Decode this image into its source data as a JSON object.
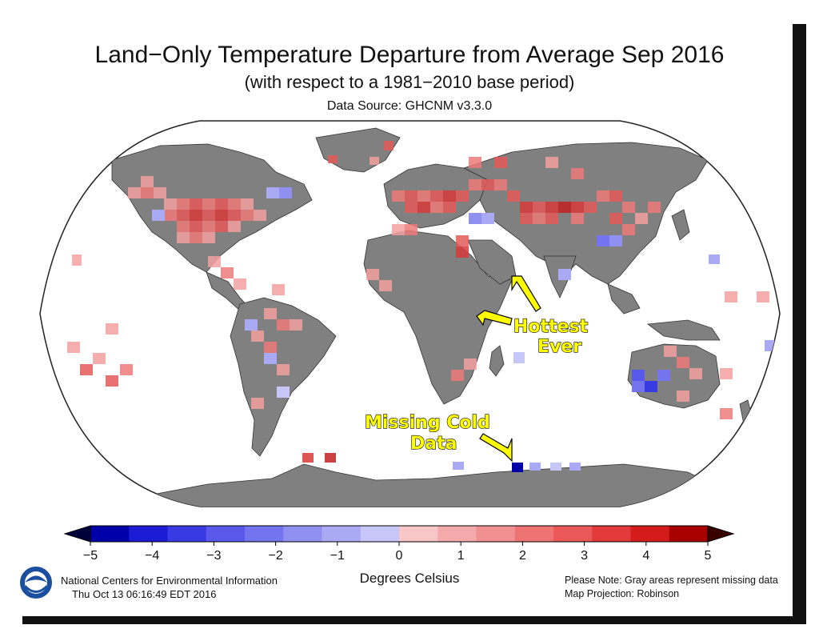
{
  "header": {
    "title": "Land−Only Temperature Departure from Average Sep 2016",
    "subtitle": "(with respect to a 1981−2010 base period)",
    "source": "Data Source: GHCNM v3.3.0"
  },
  "callouts": {
    "hottest_line1": "Hottest",
    "hottest_line2": "Ever",
    "missing_line1": "Missing Cold",
    "missing_line2": "Data"
  },
  "legend": {
    "ticks": [
      "−5",
      "−4",
      "−3",
      "−2",
      "−1",
      "0",
      "1",
      "2",
      "3",
      "4",
      "5"
    ],
    "unit_label": "Degrees Celsius",
    "colors": [
      "#0000a8",
      "#1c1cd4",
      "#3a3ae2",
      "#5858ea",
      "#7474ee",
      "#9090f0",
      "#aaaaf4",
      "#c6c6f8",
      "#f8c6c6",
      "#f4aaaa",
      "#f09090",
      "#ee7474",
      "#ea5858",
      "#e23a3a",
      "#d41c1c",
      "#a80000"
    ],
    "low_color": "#00003a",
    "high_color": "#3a0000"
  },
  "footer": {
    "org_line1": "National Centers for Environmental Information",
    "org_line2": "Thu Oct 13 06:16:49 EDT 2016",
    "note_line1": "Please Note: Gray areas represent missing data",
    "note_line2": "Map Projection: Robinson"
  },
  "map": {
    "missing_color": "#808080",
    "ocean_color": "#ffffff",
    "projection": "Robinson"
  }
}
